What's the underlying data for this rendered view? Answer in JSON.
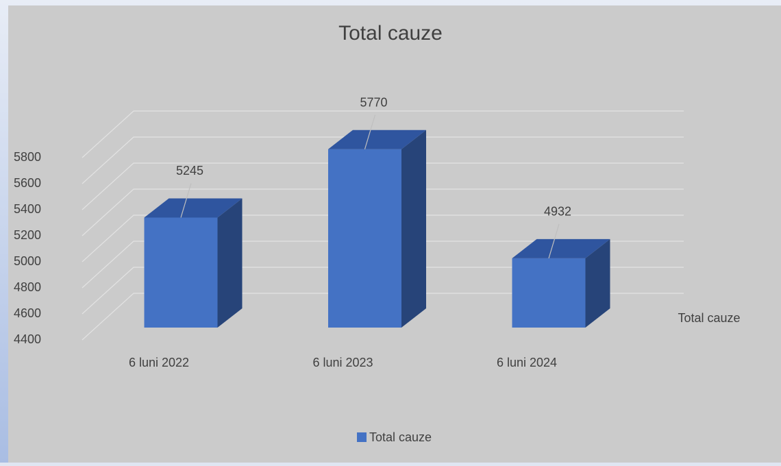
{
  "chart_data": {
    "type": "bar3d",
    "title": "Total cauze",
    "categories": [
      "6 luni 2022",
      "6 luni 2023",
      "6 luni 2024"
    ],
    "series": [
      {
        "name": "Total cauze",
        "color": "#4472c4",
        "values": [
          5245,
          5770,
          4932
        ]
      }
    ],
    "ylim": [
      4400,
      5800
    ],
    "yticks": [
      4400,
      4600,
      4800,
      5000,
      5200,
      5400,
      5600,
      5800
    ],
    "grid": true,
    "legend": "bottom"
  }
}
